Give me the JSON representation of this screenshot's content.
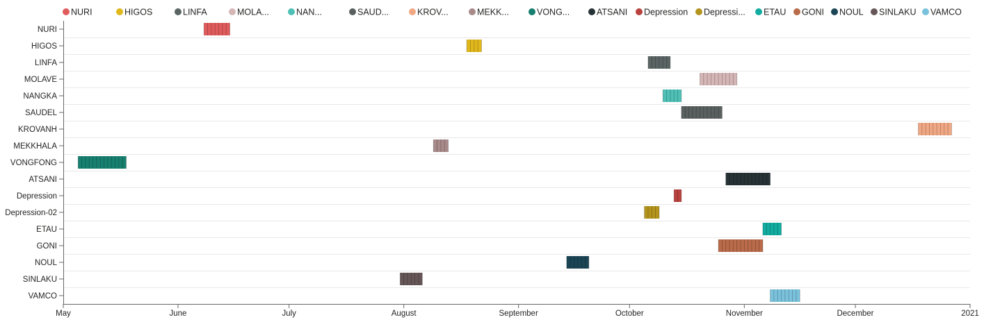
{
  "chart_data": {
    "type": "gantt",
    "title": "",
    "xlabel": "",
    "ylabel": "",
    "x_range": [
      "2020-05-01",
      "2021-01-01"
    ],
    "x_ticks": [
      {
        "date": "2020-05-01",
        "label": "May"
      },
      {
        "date": "2020-06-01",
        "label": "June"
      },
      {
        "date": "2020-07-01",
        "label": "July"
      },
      {
        "date": "2020-08-01",
        "label": "August"
      },
      {
        "date": "2020-09-01",
        "label": "September"
      },
      {
        "date": "2020-10-01",
        "label": "October"
      },
      {
        "date": "2020-11-01",
        "label": "November"
      },
      {
        "date": "2020-12-01",
        "label": "December"
      },
      {
        "date": "2021-01-01",
        "label": "2021"
      }
    ],
    "legend": {
      "position": "top",
      "entries": [
        {
          "label": "NURI",
          "color": "#e05c5c"
        },
        {
          "label": "HIGOS",
          "color": "#e0b81c"
        },
        {
          "label": "LINFA",
          "color": "#5b6464"
        },
        {
          "label": "MOLA...",
          "color": "#d5b6b6"
        },
        {
          "label": "NAN...",
          "color": "#4fc0b6"
        },
        {
          "label": "SAUD...",
          "color": "#5a6060"
        },
        {
          "label": "KROV...",
          "color": "#f0a884"
        },
        {
          "label": "MEKK...",
          "color": "#a88a8a"
        },
        {
          "label": "VONG...",
          "color": "#178070"
        },
        {
          "label": "ATSANI",
          "color": "#263235"
        },
        {
          "label": "Depression",
          "color": "#b9413e"
        },
        {
          "label": "Depressi...",
          "color": "#b3941c"
        },
        {
          "label": "ETAU",
          "color": "#12aca0"
        },
        {
          "label": "GONI",
          "color": "#b96b4a"
        },
        {
          "label": "NOUL",
          "color": "#1b4555"
        },
        {
          "label": "SINLAKU",
          "color": "#665657"
        },
        {
          "label": "VAMCO",
          "color": "#7ac2dc"
        }
      ]
    },
    "series": [
      {
        "name": "NURI",
        "start": "2020-06-08",
        "end": "2020-06-15",
        "color": "#e05c5c"
      },
      {
        "name": "HIGOS",
        "start": "2020-08-18",
        "end": "2020-08-22",
        "color": "#e0b81c"
      },
      {
        "name": "LINFA",
        "start": "2020-10-06",
        "end": "2020-10-12",
        "color": "#5b6464"
      },
      {
        "name": "MOLAVE",
        "start": "2020-10-20",
        "end": "2020-10-30",
        "color": "#d5b6b6"
      },
      {
        "name": "NANGKA",
        "start": "2020-10-10",
        "end": "2020-10-15",
        "color": "#4fc0b6"
      },
      {
        "name": "SAUDEL",
        "start": "2020-10-15",
        "end": "2020-10-26",
        "color": "#5a6060"
      },
      {
        "name": "KROVANH",
        "start": "2020-12-18",
        "end": "2020-12-27",
        "color": "#f0a884"
      },
      {
        "name": "MEKKHALA",
        "start": "2020-08-09",
        "end": "2020-08-13",
        "color": "#a88a8a"
      },
      {
        "name": "VONGFONG",
        "start": "2020-05-05",
        "end": "2020-05-18",
        "color": "#178070"
      },
      {
        "name": "ATSANI",
        "start": "2020-10-27",
        "end": "2020-11-08",
        "color": "#263235"
      },
      {
        "name": "Depression",
        "start": "2020-10-13",
        "end": "2020-10-15",
        "color": "#b9413e"
      },
      {
        "name": "Depression-02",
        "start": "2020-10-05",
        "end": "2020-10-09",
        "color": "#b3941c"
      },
      {
        "name": "ETAU",
        "start": "2020-11-06",
        "end": "2020-11-11",
        "color": "#12aca0"
      },
      {
        "name": "GONI",
        "start": "2020-10-25",
        "end": "2020-11-06",
        "color": "#b96b4a"
      },
      {
        "name": "NOUL",
        "start": "2020-09-14",
        "end": "2020-09-20",
        "color": "#1b4555"
      },
      {
        "name": "SINLAKU",
        "start": "2020-07-31",
        "end": "2020-08-06",
        "color": "#665657"
      },
      {
        "name": "VAMCO",
        "start": "2020-11-08",
        "end": "2020-11-16",
        "color": "#7ac2dc"
      }
    ],
    "grid": true
  }
}
